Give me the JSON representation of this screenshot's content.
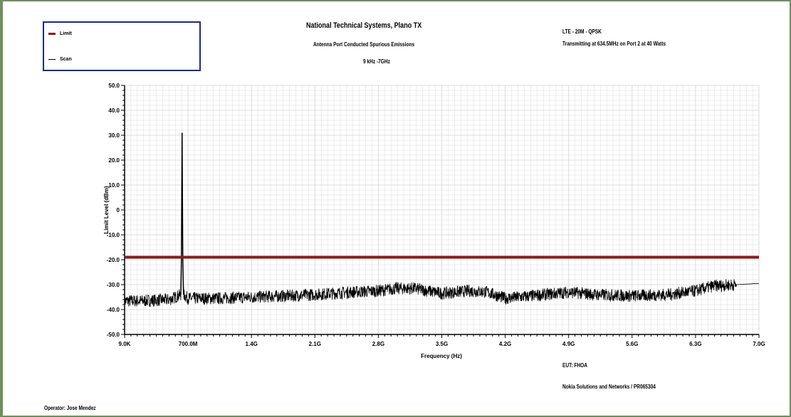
{
  "header": {
    "org": "National Technical Systems, Plano TX",
    "test_title": "Antenna Port Conducted Spurious Emissions",
    "freq_range": "9 kHz -7GHz",
    "config": "LTE - 20M - QPSK",
    "tx_desc": "Transmitting at 634.5MHz on Port 2 at 40 Watts"
  },
  "footer": {
    "eut": "EUT: FHOA",
    "customer": "Nokia Solutions and Networks / PR065304",
    "operator": "Operator: Jose Mendez"
  },
  "colors": {
    "limit": "#8b1a1a",
    "scan": "#000000",
    "legend_border": "#1c2a8a",
    "frame": "#6f8f5f",
    "grid": "#d3d3d3"
  },
  "chart_data": {
    "type": "line",
    "xlabel": "Frequency (Hz)",
    "ylabel": "Limit Level (dBm)",
    "x_ticks": [
      "9.0K",
      "700.0M",
      "1.4G",
      "2.1G",
      "2.8G",
      "3.5G",
      "4.2G",
      "4.9G",
      "5.6G",
      "6.3G",
      "7.0G"
    ],
    "y_ticks": [
      "50.0",
      "40.0",
      "30.0",
      "20.0",
      "10.0",
      "0",
      "-10.0",
      "-20.0",
      "-30.0",
      "-40.0",
      "-50.0"
    ],
    "xlim_hz": [
      9000,
      7000000000
    ],
    "ylim": [
      -50,
      50
    ],
    "grid": true,
    "legend_position": "top-left",
    "series": [
      {
        "name": "Limit",
        "x_hz": [
          9000,
          7000000000
        ],
        "y": [
          -19.0,
          -19.0
        ]
      },
      {
        "name": "Scan",
        "x_hz": [
          9000,
          200000000,
          500000000,
          620000000,
          627000000,
          634500000,
          642000000,
          650000000,
          700000000,
          1000000000,
          1400000000,
          1800000000,
          2100000000,
          2500000000,
          2800000000,
          3000000000,
          3200000000,
          3500000000,
          3800000000,
          4000000000,
          4200000000,
          4500000000,
          4900000000,
          5200000000,
          5600000000,
          6000000000,
          6300000000,
          6500000000,
          7000000000
        ],
        "y": [
          -36.5,
          -36.5,
          -36.0,
          -34.0,
          -20.0,
          31.0,
          -20.0,
          -34.0,
          -35.5,
          -35.5,
          -35.0,
          -34.5,
          -34.0,
          -33.0,
          -32.5,
          -31.5,
          -31.5,
          -33.5,
          -32.5,
          -33.0,
          -35.5,
          -34.5,
          -33.0,
          -34.0,
          -34.5,
          -34.0,
          -32.5,
          -30.5,
          -29.5
        ]
      }
    ]
  }
}
